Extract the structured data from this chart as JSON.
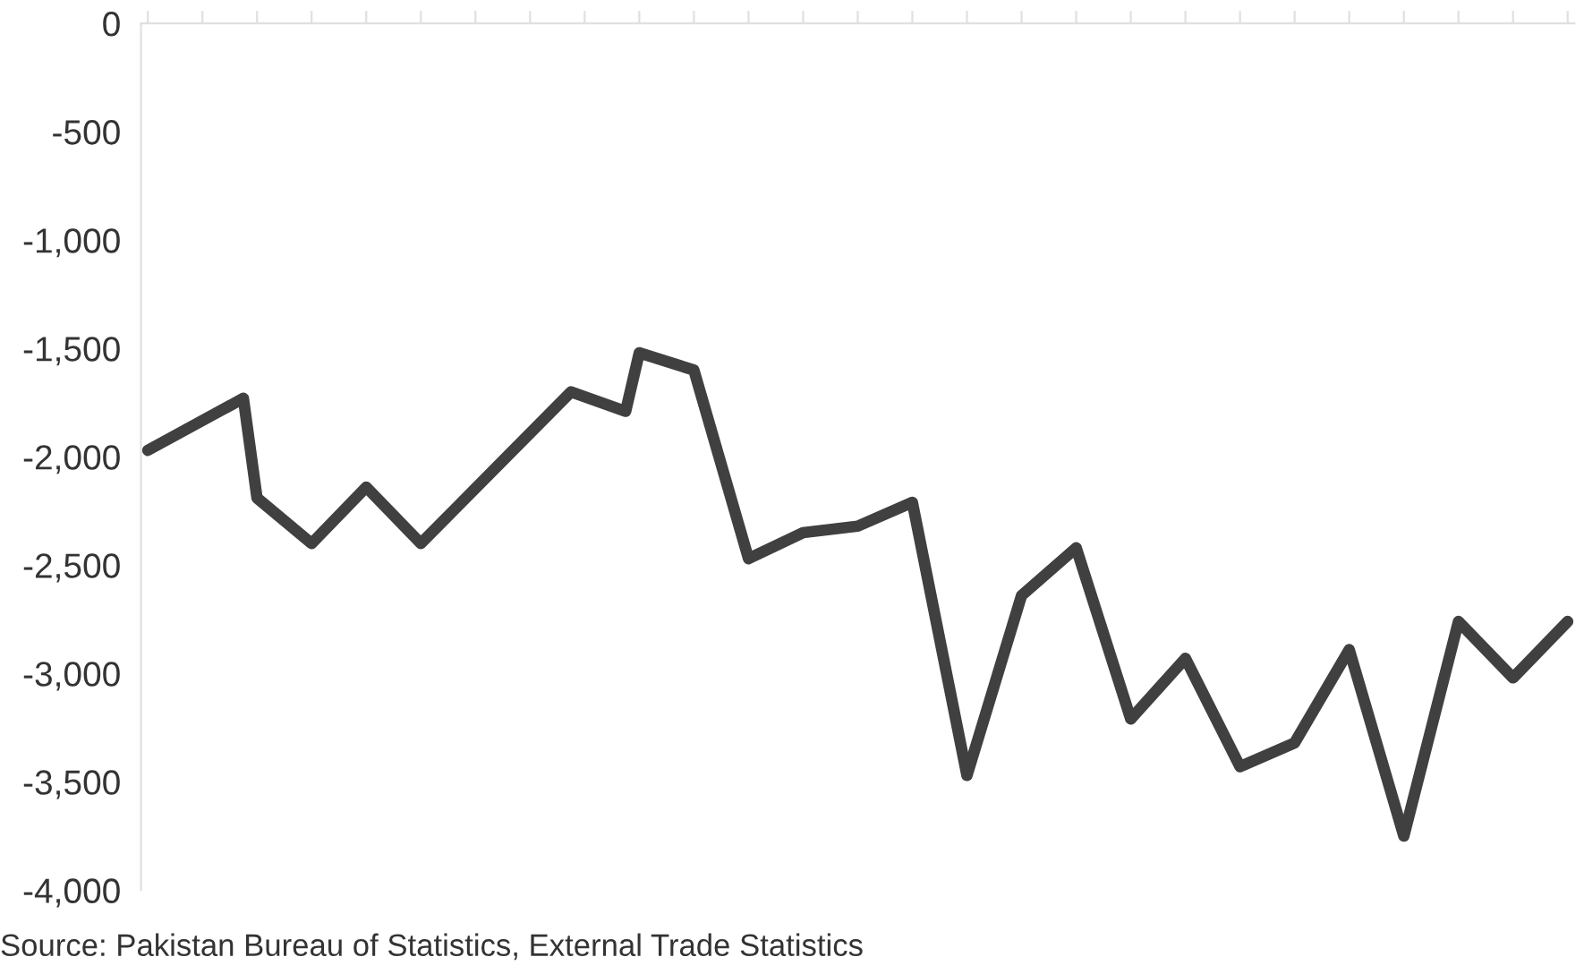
{
  "chart_data": {
    "type": "line",
    "categories": [
      null,
      null,
      null,
      null,
      null,
      null,
      null,
      null,
      null,
      null,
      null,
      null,
      null,
      null,
      null,
      null,
      null,
      null,
      null,
      null,
      null,
      null,
      null,
      null,
      null,
      null,
      null,
      null,
      null,
      null,
      null,
      null,
      null,
      null,
      null,
      null,
      null,
      null,
      null,
      null,
      null,
      null,
      null,
      null,
      null,
      null,
      null,
      null,
      null,
      null,
      null,
      null,
      null,
      null,
      null,
      null,
      null,
      null,
      null,
      null,
      null,
      null,
      null,
      null,
      null,
      null,
      null,
      null,
      null,
      null,
      null,
      null,
      null,
      null,
      null,
      null,
      null,
      null,
      null,
      null,
      null,
      null,
      null,
      null,
      null,
      null,
      null,
      null,
      null,
      null,
      null,
      null,
      null,
      null,
      null,
      null,
      null,
      null,
      null,
      null,
      null,
      null,
      null,
      null,
      null
    ],
    "series": [
      {
        "color": "#404040",
        "values": [
          -1970,
          null,
          null,
          null,
          null,
          null,
          null,
          -1730,
          -2190,
          null,
          null,
          null,
          -2400,
          null,
          null,
          null,
          -2140,
          null,
          null,
          null,
          -2400,
          null,
          null,
          null,
          null,
          null,
          null,
          null,
          null,
          null,
          null,
          -1700,
          null,
          null,
          null,
          -1790,
          -1520,
          null,
          null,
          null,
          -1600,
          null,
          null,
          null,
          -2470,
          null,
          null,
          null,
          -2350,
          null,
          null,
          null,
          -2320,
          null,
          null,
          null,
          -2210,
          null,
          null,
          null,
          -3470,
          null,
          null,
          null,
          -2640,
          null,
          null,
          null,
          -2420,
          null,
          null,
          null,
          -3210,
          null,
          null,
          null,
          -2930,
          null,
          null,
          null,
          -3430,
          null,
          null,
          null,
          -3320,
          null,
          null,
          null,
          -2890,
          null,
          null,
          null,
          -3750,
          null,
          null,
          null,
          -2760,
          null,
          null,
          null,
          -3020,
          null,
          null,
          null,
          -2760
        ]
      }
    ],
    "ylim": [
      -4000,
      0
    ],
    "yticks": [
      {
        "value": 0,
        "label": "0"
      },
      {
        "value": -500,
        "label": "-500"
      },
      {
        "value": -1000,
        "label": "-1,000"
      },
      {
        "value": -1500,
        "label": "-1,500"
      },
      {
        "value": -2000,
        "label": "-2,000"
      },
      {
        "value": -2500,
        "label": "-2,500"
      },
      {
        "value": -3000,
        "label": "-3,000"
      },
      {
        "value": -3500,
        "label": "-3,500"
      },
      {
        "value": -4000,
        "label": "-4,000"
      }
    ],
    "tick_labels": "y",
    "marker": "none",
    "line_style": "solid",
    "annotations": [
      "Source: Pakistan Bureau of Statistics, External Trade Statistics"
    ]
  }
}
